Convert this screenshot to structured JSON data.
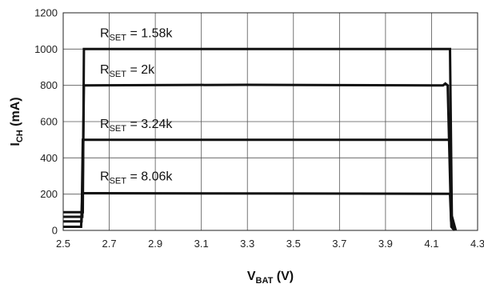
{
  "chart_data": {
    "type": "line",
    "xlabel": {
      "main": "V",
      "sub": "BAT",
      "suffix": " (V)"
    },
    "ylabel": {
      "main": "I",
      "sub": "CH",
      "suffix": " (mA)"
    },
    "xlim": [
      2.5,
      4.3
    ],
    "ylim": [
      0,
      1200
    ],
    "xticks": [
      2.5,
      2.7,
      2.9,
      3.1,
      3.3,
      3.5,
      3.7,
      3.9,
      4.1,
      4.3
    ],
    "xtick_labels": [
      "2.5",
      "2.7",
      "2.9",
      "3.1",
      "3.3",
      "3.5",
      "3.7",
      "3.9",
      "4.1",
      "4.3"
    ],
    "yticks": [
      0,
      200,
      400,
      600,
      800,
      1000,
      1200
    ],
    "ytick_labels": [
      "0",
      "200",
      "400",
      "600",
      "800",
      "1000",
      "1200"
    ],
    "grid": true,
    "line_color": "#111111",
    "series": [
      {
        "label": {
          "main": "R",
          "sub": "SET",
          "value": " = 1.58k"
        },
        "label_pos": {
          "x": 2.66,
          "y": 1065
        },
        "x": [
          2.5,
          2.585,
          2.59,
          4.18,
          4.188,
          4.205
        ],
        "y": [
          100,
          100,
          1000,
          1000,
          80,
          0
        ]
      },
      {
        "label": {
          "main": "R",
          "sub": "SET",
          "value": " = 2k"
        },
        "label_pos": {
          "x": 2.66,
          "y": 865
        },
        "x": [
          2.5,
          2.583,
          2.59,
          3.3,
          4.1,
          4.15,
          4.16,
          4.17,
          4.185,
          4.2
        ],
        "y": [
          75,
          75,
          800,
          803,
          800,
          800,
          810,
          800,
          50,
          0
        ]
      },
      {
        "label": {
          "main": "R",
          "sub": "SET",
          "value": " = 3.24k"
        },
        "label_pos": {
          "x": 2.66,
          "y": 565
        },
        "x": [
          2.5,
          2.58,
          2.585,
          4.18,
          4.188,
          4.2
        ],
        "y": [
          50,
          50,
          500,
          500,
          40,
          0
        ]
      },
      {
        "label": {
          "main": "R",
          "sub": "SET",
          "value": " = 8.06k"
        },
        "label_pos": {
          "x": 2.66,
          "y": 275
        },
        "x": [
          2.5,
          2.578,
          2.583,
          4.18,
          4.186,
          4.2
        ],
        "y": [
          20,
          20,
          205,
          202,
          20,
          0
        ]
      }
    ]
  }
}
